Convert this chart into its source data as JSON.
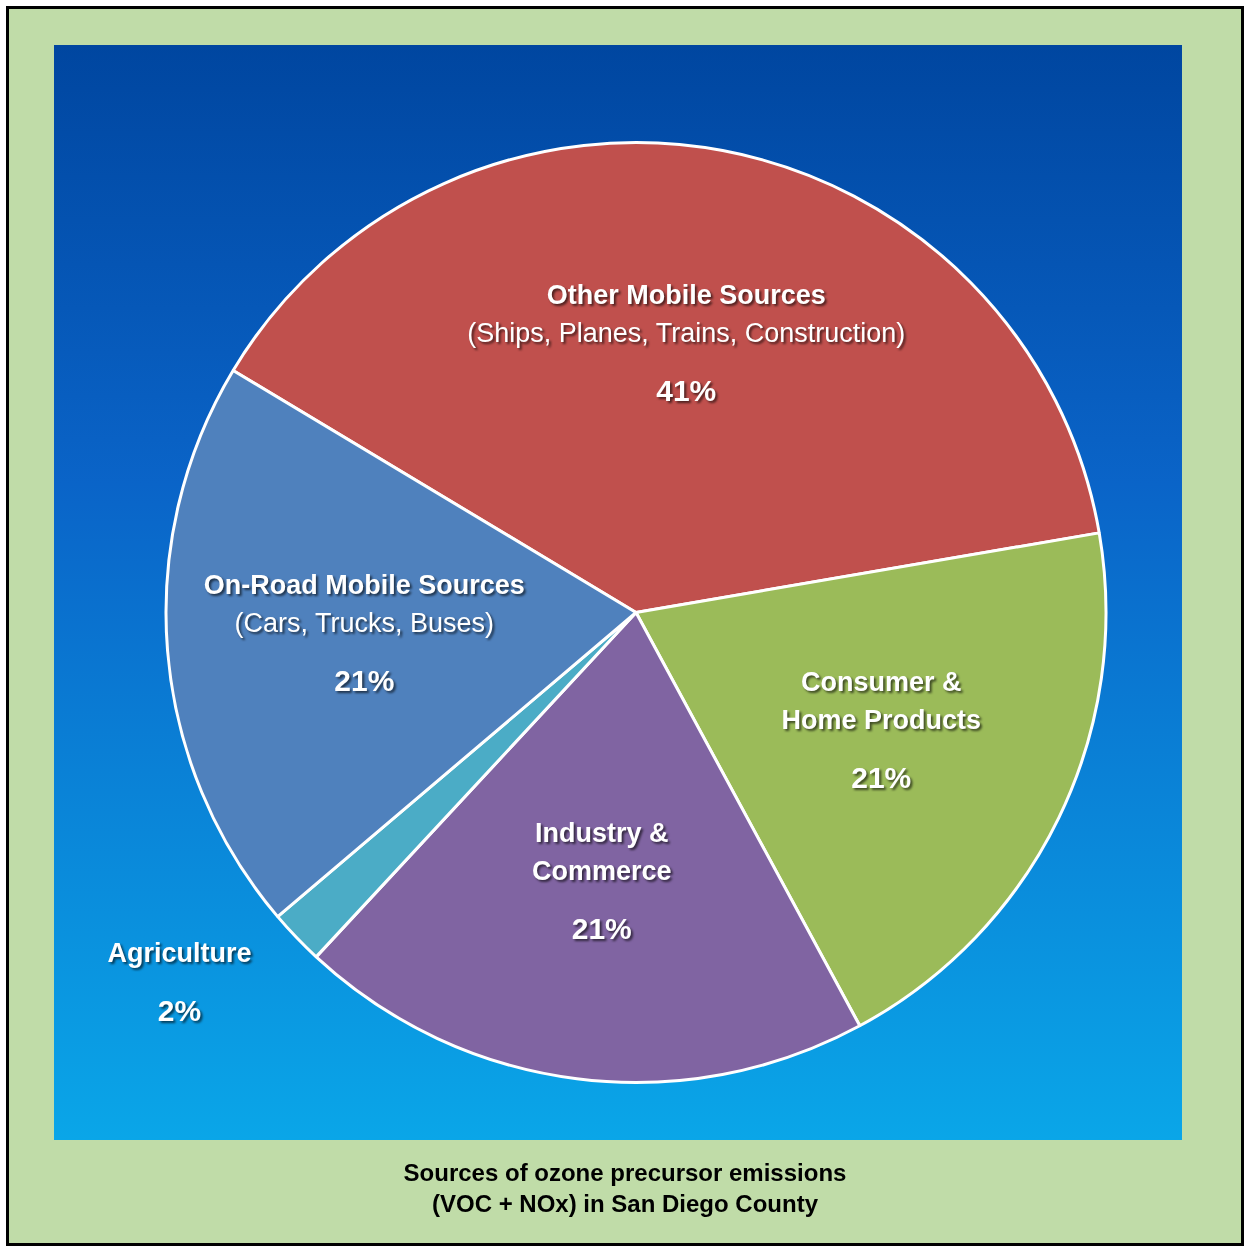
{
  "chart_data": {
    "type": "pie",
    "title": "Sources of ozone precursor emissions\n(VOC + NOx) in San Diego County",
    "categories": [
      "Other Mobile Sources\n(Ships, Planes, Trains, Construction)",
      "Consumer &\nHome Products",
      "Industry &\nCommerce",
      "Agriculture",
      "On-Road Mobile Sources\n(Cars, Trucks, Buses)"
    ],
    "values": [
      41,
      21,
      21,
      2,
      21
    ],
    "colors": [
      "#c0504d",
      "#9bbb59",
      "#8064a2",
      "#4bacc6",
      "#4f81bd"
    ],
    "value_labels": [
      "41%",
      "21%",
      "21%",
      "2%",
      "21%"
    ],
    "legend": false
  }
}
